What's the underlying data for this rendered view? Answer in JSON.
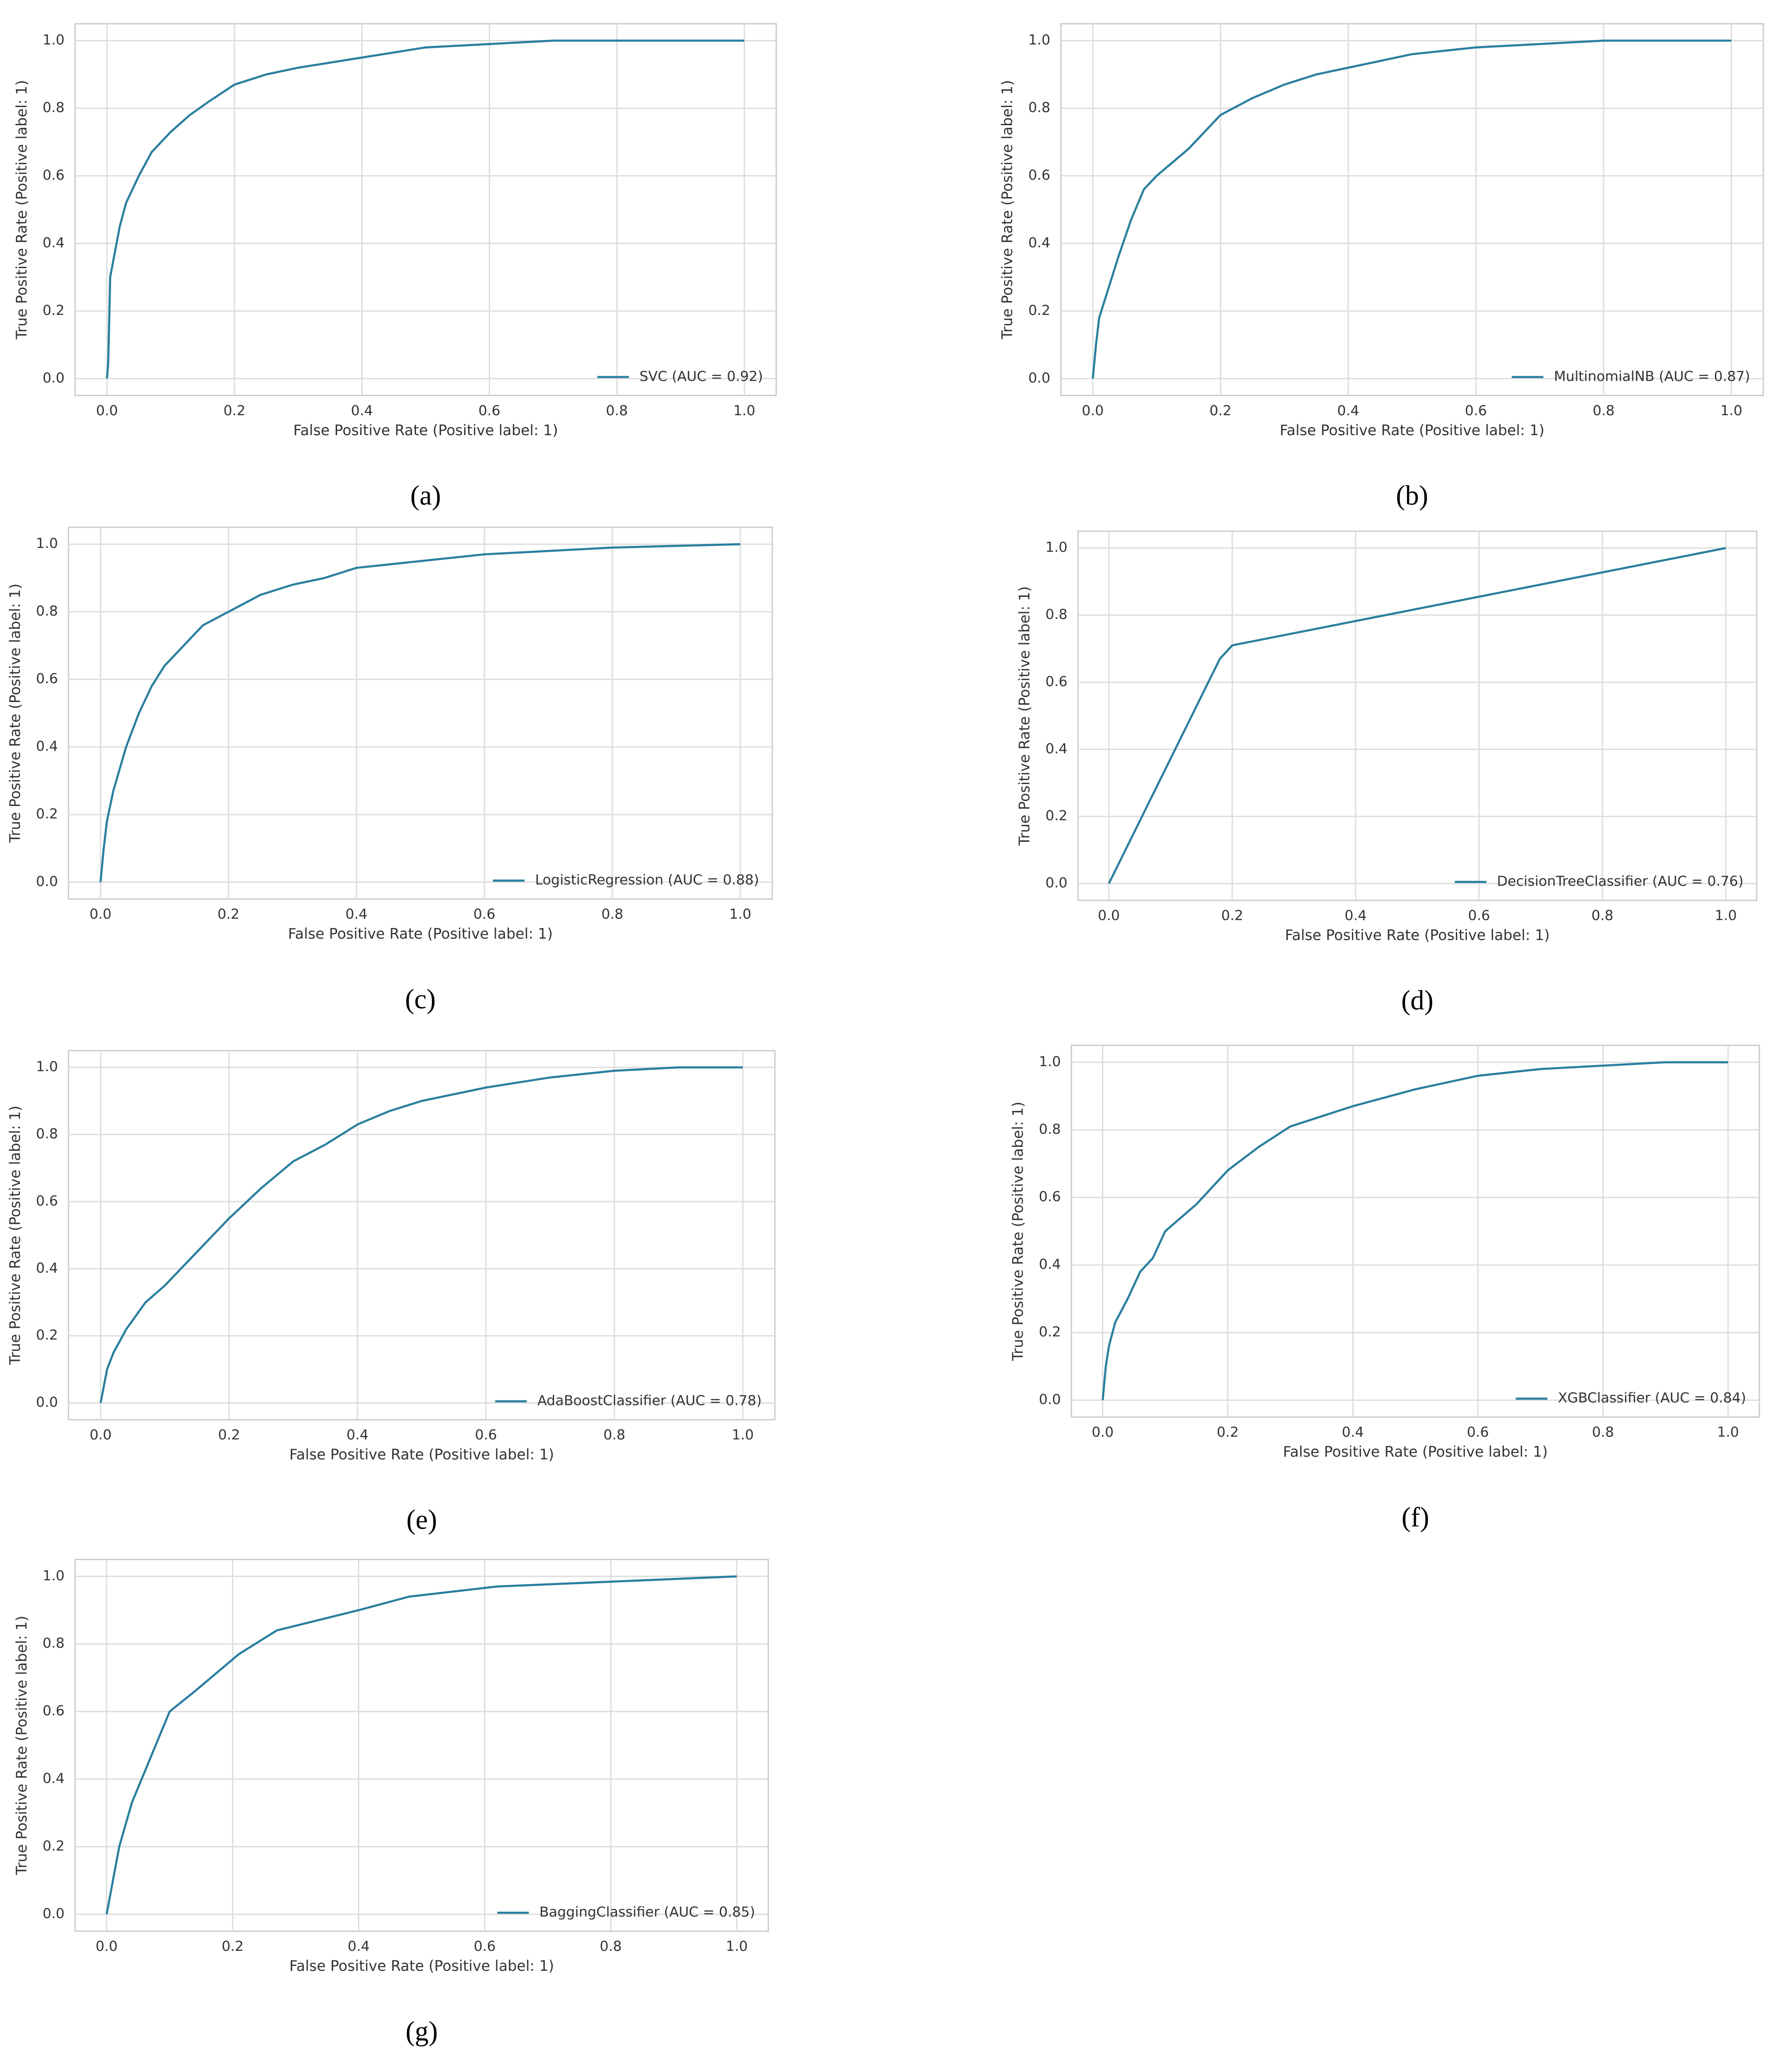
{
  "chart_data": [
    {
      "type": "line",
      "caption": "(a)",
      "xlabel": "False Positive Rate (Positive label: 1)",
      "ylabel": "True Positive Rate (Positive label: 1)",
      "x": [
        0,
        0.002,
        0.005,
        0.01,
        0.02,
        0.03,
        0.05,
        0.07,
        0.1,
        0.13,
        0.16,
        0.2,
        0.25,
        0.3,
        0.4,
        0.5,
        0.6,
        0.7,
        0.8,
        1
      ],
      "series": [
        {
          "name": "SVC (AUC = 0.92)",
          "color": "#2a7f9e",
          "values": [
            0,
            0.05,
            0.3,
            0.35,
            0.45,
            0.52,
            0.6,
            0.67,
            0.73,
            0.78,
            0.82,
            0.87,
            0.9,
            0.92,
            0.95,
            0.98,
            0.99,
            1,
            1,
            1
          ]
        }
      ],
      "xlim": [
        -0.05,
        1.05
      ],
      "ylim": [
        -0.05,
        1.05
      ],
      "xticks": [
        {
          "value": 0,
          "label": "0.0"
        },
        0.2,
        0.4,
        0.6,
        0.8,
        {
          "value": 1,
          "label": "1.0"
        }
      ],
      "yticks": [
        {
          "value": 0,
          "label": "0.0"
        },
        0.2,
        0.4,
        0.6,
        0.8,
        {
          "value": 1,
          "label": "1.0"
        }
      ],
      "grid": true,
      "legend": "lower right"
    },
    {
      "type": "line",
      "caption": "(b)",
      "xlabel": "False Positive Rate (Positive label: 1)",
      "ylabel": "True Positive Rate (Positive label: 1)",
      "x": [
        0,
        0.005,
        0.01,
        0.02,
        0.04,
        0.06,
        0.08,
        0.1,
        0.15,
        0.2,
        0.25,
        0.3,
        0.35,
        0.4,
        0.5,
        0.6,
        0.7,
        0.8,
        1
      ],
      "series": [
        {
          "name": "MultinomialNB (AUC = 0.87)",
          "color": "#2a7f9e",
          "values": [
            0,
            0.1,
            0.18,
            0.24,
            0.36,
            0.47,
            0.56,
            0.6,
            0.68,
            0.78,
            0.83,
            0.87,
            0.9,
            0.92,
            0.96,
            0.98,
            0.99,
            1,
            1
          ]
        }
      ],
      "xlim": [
        -0.05,
        1.05
      ],
      "ylim": [
        -0.05,
        1.05
      ],
      "xticks": [
        {
          "value": 0,
          "label": "0.0"
        },
        0.2,
        0.4,
        0.6,
        0.8,
        {
          "value": 1,
          "label": "1.0"
        }
      ],
      "yticks": [
        {
          "value": 0,
          "label": "0.0"
        },
        0.2,
        0.4,
        0.6,
        0.8,
        {
          "value": 1,
          "label": "1.0"
        }
      ],
      "grid": true,
      "legend": "lower right"
    },
    {
      "type": "line",
      "caption": "(c)",
      "xlabel": "False Positive Rate (Positive label: 1)",
      "ylabel": "True Positive Rate (Positive label: 1)",
      "x": [
        0,
        0.005,
        0.01,
        0.02,
        0.04,
        0.06,
        0.08,
        0.1,
        0.13,
        0.16,
        0.2,
        0.25,
        0.3,
        0.35,
        0.4,
        0.5,
        0.6,
        0.7,
        0.8,
        1
      ],
      "series": [
        {
          "name": "LogisticRegression (AUC = 0.88)",
          "color": "#2a7f9e",
          "values": [
            0,
            0.1,
            0.18,
            0.27,
            0.4,
            0.5,
            0.58,
            0.64,
            0.7,
            0.76,
            0.8,
            0.85,
            0.88,
            0.9,
            0.93,
            0.95,
            0.97,
            0.98,
            0.99,
            1
          ]
        }
      ],
      "xlim": [
        -0.05,
        1.05
      ],
      "ylim": [
        -0.05,
        1.05
      ],
      "xticks": [
        {
          "value": 0,
          "label": "0.0"
        },
        0.2,
        0.4,
        0.6,
        0.8,
        {
          "value": 1,
          "label": "1.0"
        }
      ],
      "yticks": [
        {
          "value": 0,
          "label": "0.0"
        },
        0.2,
        0.4,
        0.6,
        0.8,
        {
          "value": 1,
          "label": "1.0"
        }
      ],
      "grid": true,
      "legend": "lower right"
    },
    {
      "type": "line",
      "caption": "(d)",
      "xlabel": "False Positive Rate (Positive label: 1)",
      "ylabel": "True Positive Rate (Positive label: 1)",
      "x": [
        0,
        0.18,
        0.2,
        1
      ],
      "series": [
        {
          "name": "DecisionTreeClassifier (AUC = 0.76)",
          "color": "#2a7f9e",
          "values": [
            0,
            0.67,
            0.71,
            1
          ]
        }
      ],
      "xlim": [
        -0.05,
        1.05
      ],
      "ylim": [
        -0.05,
        1.05
      ],
      "xticks": [
        {
          "value": 0,
          "label": "0.0"
        },
        0.2,
        0.4,
        0.6,
        0.8,
        {
          "value": 1,
          "label": "1.0"
        }
      ],
      "yticks": [
        {
          "value": 0,
          "label": "0.0"
        },
        0.2,
        0.4,
        0.6,
        0.8,
        {
          "value": 1,
          "label": "1.0"
        }
      ],
      "grid": true,
      "legend": "lower right"
    },
    {
      "type": "line",
      "caption": "(e)",
      "xlabel": "False Positive Rate (Positive label: 1)",
      "ylabel": "True Positive Rate (Positive label: 1)",
      "x": [
        0,
        0.01,
        0.02,
        0.04,
        0.07,
        0.1,
        0.15,
        0.2,
        0.25,
        0.3,
        0.35,
        0.4,
        0.45,
        0.5,
        0.6,
        0.7,
        0.8,
        0.9,
        1
      ],
      "series": [
        {
          "name": "AdaBoostClassifier (AUC = 0.78)",
          "color": "#2a7f9e",
          "values": [
            0,
            0.1,
            0.15,
            0.22,
            0.3,
            0.35,
            0.45,
            0.55,
            0.64,
            0.72,
            0.77,
            0.83,
            0.87,
            0.9,
            0.94,
            0.97,
            0.99,
            1,
            1
          ]
        }
      ],
      "xlim": [
        -0.05,
        1.05
      ],
      "ylim": [
        -0.05,
        1.05
      ],
      "xticks": [
        {
          "value": 0,
          "label": "0.0"
        },
        0.2,
        0.4,
        0.6,
        0.8,
        {
          "value": 1,
          "label": "1.0"
        }
      ],
      "yticks": [
        {
          "value": 0,
          "label": "0.0"
        },
        0.2,
        0.4,
        0.6,
        0.8,
        {
          "value": 1,
          "label": "1.0"
        }
      ],
      "grid": true,
      "legend": "lower right"
    },
    {
      "type": "line",
      "caption": "(f)",
      "xlabel": "False Positive Rate (Positive label: 1)",
      "ylabel": "True Positive Rate (Positive label: 1)",
      "x": [
        0,
        0.005,
        0.01,
        0.02,
        0.04,
        0.06,
        0.08,
        0.1,
        0.15,
        0.2,
        0.25,
        0.3,
        0.35,
        0.4,
        0.5,
        0.6,
        0.7,
        0.8,
        0.9,
        1
      ],
      "series": [
        {
          "name": "XGBClassifier (AUC = 0.84)",
          "color": "#2a7f9e",
          "values": [
            0,
            0.1,
            0.16,
            0.23,
            0.3,
            0.38,
            0.42,
            0.5,
            0.58,
            0.68,
            0.75,
            0.81,
            0.84,
            0.87,
            0.92,
            0.96,
            0.98,
            0.99,
            1,
            1
          ]
        }
      ],
      "xlim": [
        -0.05,
        1.05
      ],
      "ylim": [
        -0.05,
        1.05
      ],
      "xticks": [
        {
          "value": 0,
          "label": "0.0"
        },
        0.2,
        0.4,
        0.6,
        0.8,
        {
          "value": 1,
          "label": "1.0"
        }
      ],
      "yticks": [
        {
          "value": 0,
          "label": "0.0"
        },
        0.2,
        0.4,
        0.6,
        0.8,
        {
          "value": 1,
          "label": "1.0"
        }
      ],
      "grid": true,
      "legend": "lower right"
    },
    {
      "type": "line",
      "caption": "(g)",
      "xlabel": "False Positive Rate (Positive label: 1)",
      "ylabel": "True Positive Rate (Positive label: 1)",
      "x": [
        0,
        0.02,
        0.04,
        0.1,
        0.14,
        0.21,
        0.27,
        0.4,
        0.48,
        0.62,
        1
      ],
      "series": [
        {
          "name": "BaggingClassifier (AUC = 0.85)",
          "color": "#2a7f9e",
          "values": [
            0,
            0.2,
            0.33,
            0.6,
            0.66,
            0.77,
            0.84,
            0.9,
            0.94,
            0.97,
            1
          ]
        }
      ],
      "xlim": [
        -0.05,
        1.05
      ],
      "ylim": [
        -0.05,
        1.05
      ],
      "xticks": [
        {
          "value": 0,
          "label": "0.0"
        },
        0.2,
        0.4,
        0.6,
        0.8,
        {
          "value": 1,
          "label": "1.0"
        }
      ],
      "yticks": [
        {
          "value": 0,
          "label": "0.0"
        },
        0.2,
        0.4,
        0.6,
        0.8,
        {
          "value": 1,
          "label": "1.0"
        }
      ],
      "grid": true,
      "legend": "lower right"
    }
  ]
}
